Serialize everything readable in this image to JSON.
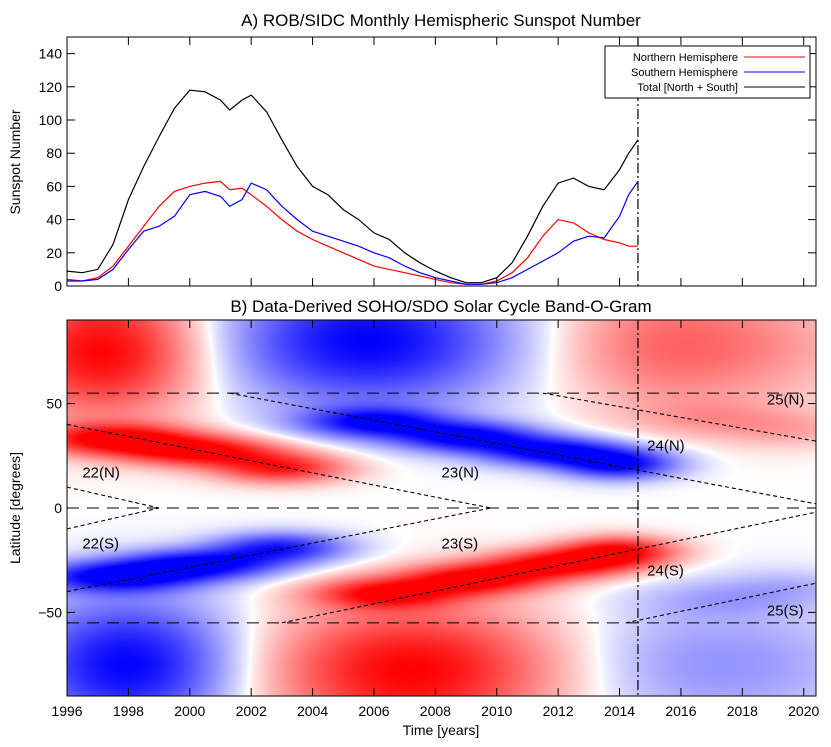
{
  "chart_data": [
    {
      "type": "line",
      "title": "A) ROB/SIDC Monthly Hemispheric Sunspot Number",
      "xlabel": "",
      "ylabel": "Sunspot Number",
      "xlim": [
        1996,
        2020.4
      ],
      "ylim": [
        0,
        150
      ],
      "yticks": [
        0,
        20,
        40,
        60,
        80,
        100,
        120,
        140
      ],
      "grid": false,
      "legend_position": "top-right",
      "vline_x": 2014.6,
      "series": [
        {
          "name": "Northern Hemisphere",
          "color": "#ff0000",
          "x": [
            1996,
            1996.5,
            1997,
            1997.5,
            1998,
            1998.5,
            1999,
            1999.5,
            2000,
            2000.5,
            2001,
            2001.3,
            2001.7,
            2002,
            2002.5,
            2003,
            2003.5,
            2004,
            2004.5,
            2005,
            2005.5,
            2006,
            2006.5,
            2007,
            2007.5,
            2008,
            2008.5,
            2009,
            2009.5,
            2010,
            2010.5,
            2011,
            2011.5,
            2012,
            2012.5,
            2013,
            2013.5,
            2014,
            2014.3,
            2014.6
          ],
          "values": [
            4,
            3,
            5,
            12,
            24,
            36,
            48,
            57,
            60,
            62,
            63,
            58,
            59,
            55,
            48,
            40,
            33,
            28,
            24,
            20,
            16,
            12,
            10,
            8,
            6,
            4,
            2,
            1,
            1,
            3,
            8,
            17,
            30,
            40,
            38,
            32,
            28,
            26,
            24,
            24
          ]
        },
        {
          "name": "Southern Hemisphere",
          "color": "#0000ff",
          "x": [
            1996,
            1996.5,
            1997,
            1997.5,
            1998,
            1998.5,
            1999,
            1999.5,
            2000,
            2000.5,
            2001,
            2001.3,
            2001.7,
            2002,
            2002.5,
            2003,
            2003.5,
            2004,
            2004.5,
            2005,
            2005.5,
            2006,
            2006.5,
            2007,
            2007.5,
            2008,
            2008.5,
            2009,
            2009.5,
            2010,
            2010.5,
            2011,
            2011.5,
            2012,
            2012.5,
            2013,
            2013.5,
            2014,
            2014.3,
            2014.6
          ],
          "values": [
            3,
            3,
            4,
            10,
            22,
            33,
            36,
            42,
            55,
            57,
            54,
            48,
            52,
            62,
            58,
            48,
            40,
            33,
            30,
            27,
            24,
            20,
            17,
            12,
            8,
            5,
            3,
            1,
            1,
            2,
            5,
            10,
            15,
            20,
            27,
            30,
            29,
            42,
            55,
            63
          ]
        },
        {
          "name": "Total [North + South]",
          "color": "#000000",
          "x": [
            1996,
            1996.5,
            1997,
            1997.5,
            1998,
            1998.5,
            1999,
            1999.5,
            2000,
            2000.5,
            2001,
            2001.3,
            2001.7,
            2002,
            2002.5,
            2003,
            2003.5,
            2004,
            2004.5,
            2005,
            2005.5,
            2006,
            2006.5,
            2007,
            2007.5,
            2008,
            2008.5,
            2009,
            2009.5,
            2010,
            2010.5,
            2011,
            2011.5,
            2012,
            2012.5,
            2013,
            2013.5,
            2014,
            2014.3,
            2014.6
          ],
          "values": [
            9,
            8,
            10,
            25,
            52,
            72,
            90,
            107,
            118,
            117,
            112,
            106,
            112,
            115,
            105,
            88,
            72,
            60,
            55,
            46,
            40,
            32,
            28,
            20,
            14,
            9,
            5,
            2,
            2,
            5,
            14,
            30,
            48,
            62,
            65,
            60,
            58,
            70,
            80,
            88
          ]
        }
      ]
    },
    {
      "type": "heatmap",
      "title": "B) Data-Derived SOHO/SDO Solar Cycle Band-O-Gram",
      "xlabel": "Time [years]",
      "ylabel": "Latitude [degrees]",
      "xlim": [
        1996,
        2020.4
      ],
      "ylim": [
        -90,
        90
      ],
      "xticks": [
        1996,
        1998,
        2000,
        2002,
        2004,
        2006,
        2008,
        2010,
        2012,
        2014,
        2016,
        2018,
        2020
      ],
      "yticks": [
        -50,
        0,
        50
      ],
      "yticklabels": [
        "−50",
        "0",
        "50"
      ],
      "grid": false,
      "vline_x": 2014.6,
      "hlines_y": [
        55,
        0,
        -55
      ],
      "band_lines": [
        {
          "x": [
            1996,
            1999
          ],
          "y": [
            10,
            0
          ]
        },
        {
          "x": [
            1996,
            1999
          ],
          "y": [
            -10,
            0
          ]
        },
        {
          "x": [
            1996,
            2009.8
          ],
          "y": [
            40,
            0
          ]
        },
        {
          "x": [
            1996,
            2009.8
          ],
          "y": [
            -40,
            0
          ]
        },
        {
          "x": [
            2001.3,
            2020.4
          ],
          "y": [
            55,
            2
          ]
        },
        {
          "x": [
            2003,
            2020.4
          ],
          "y": [
            -55,
            -2
          ]
        },
        {
          "x": [
            2011.5,
            2020.4
          ],
          "y": [
            55,
            32
          ]
        },
        {
          "x": [
            2014.2,
            2020.4
          ],
          "y": [
            -55,
            -36
          ]
        }
      ],
      "annotations": [
        {
          "text": "22(N)",
          "x": 1996.5,
          "y": 17
        },
        {
          "text": "22(S)",
          "x": 1996.5,
          "y": -17
        },
        {
          "text": "23(N)",
          "x": 2008.2,
          "y": 17
        },
        {
          "text": "23(S)",
          "x": 2008.2,
          "y": -17
        },
        {
          "text": "24(N)",
          "x": 2014.9,
          "y": 30
        },
        {
          "text": "24(S)",
          "x": 2014.9,
          "y": -30
        },
        {
          "text": "25(N)",
          "x": 2018.8,
          "y": 52
        },
        {
          "text": "25(S)",
          "x": 2018.8,
          "y": -49
        }
      ],
      "colors": {
        "positive": "#ff0000",
        "negative": "#0000ff",
        "zero": "#ffffff"
      },
      "blobs": [
        {
          "x": 1997.2,
          "y": 75,
          "sx": 2.2,
          "sy": 22,
          "v": 1.0
        },
        {
          "x": 2005.8,
          "y": 80,
          "sx": 3.2,
          "sy": 22,
          "v": -1.0
        },
        {
          "x": 2015.5,
          "y": 78,
          "sx": 2.5,
          "sy": 22,
          "v": 0.5
        },
        {
          "x": 2019.3,
          "y": 78,
          "sx": 2.2,
          "sy": 20,
          "v": 0.2
        },
        {
          "x": 1998.0,
          "y": -75,
          "sx": 2.4,
          "sy": 22,
          "v": -1.0
        },
        {
          "x": 2007.2,
          "y": -78,
          "sx": 3.2,
          "sy": 22,
          "v": 1.0
        },
        {
          "x": 2016.2,
          "y": -75,
          "sx": 2.5,
          "sy": 22,
          "v": -0.3
        },
        {
          "x": 2019.8,
          "y": -75,
          "sx": 2.0,
          "sy": 20,
          "v": -0.15
        },
        {
          "x": 1997.6,
          "y": 33,
          "sx": 1.8,
          "sy": 5,
          "v": 1.0
        },
        {
          "x": 2000.4,
          "y": 27,
          "sx": 1.8,
          "sy": 5,
          "v": 1.0
        },
        {
          "x": 2003.0,
          "y": 19,
          "sx": 1.5,
          "sy": 5,
          "v": 0.85
        },
        {
          "x": 1997.6,
          "y": -33,
          "sx": 1.8,
          "sy": 5,
          "v": -1.0
        },
        {
          "x": 2000.4,
          "y": -27,
          "sx": 1.8,
          "sy": 5,
          "v": -1.0
        },
        {
          "x": 2003.0,
          "y": -19,
          "sx": 1.5,
          "sy": 5,
          "v": -0.85
        },
        {
          "x": 2006.0,
          "y": 41,
          "sx": 1.6,
          "sy": 5,
          "v": -0.9
        },
        {
          "x": 2009.0,
          "y": 34,
          "sx": 1.6,
          "sy": 5,
          "v": -1.0
        },
        {
          "x": 2011.8,
          "y": 27,
          "sx": 1.6,
          "sy": 5,
          "v": -1.0
        },
        {
          "x": 2014.0,
          "y": 21,
          "sx": 1.3,
          "sy": 5,
          "v": -1.0
        },
        {
          "x": 2006.4,
          "y": -41,
          "sx": 1.6,
          "sy": 5,
          "v": 0.9
        },
        {
          "x": 2009.3,
          "y": -34,
          "sx": 1.6,
          "sy": 5,
          "v": 1.0
        },
        {
          "x": 2012.0,
          "y": -27,
          "sx": 1.6,
          "sy": 5,
          "v": 1.0
        },
        {
          "x": 2014.0,
          "y": -21,
          "sx": 1.3,
          "sy": 5,
          "v": 1.0
        },
        {
          "x": 2017.0,
          "y": 43,
          "sx": 1.8,
          "sy": 6,
          "v": 0.22
        },
        {
          "x": 2019.6,
          "y": 37,
          "sx": 1.6,
          "sy": 6,
          "v": 0.22
        },
        {
          "x": 2017.2,
          "y": -44,
          "sx": 1.8,
          "sy": 6,
          "v": -0.18
        },
        {
          "x": 2019.6,
          "y": -38,
          "sx": 1.6,
          "sy": 6,
          "v": -0.18
        }
      ]
    }
  ]
}
